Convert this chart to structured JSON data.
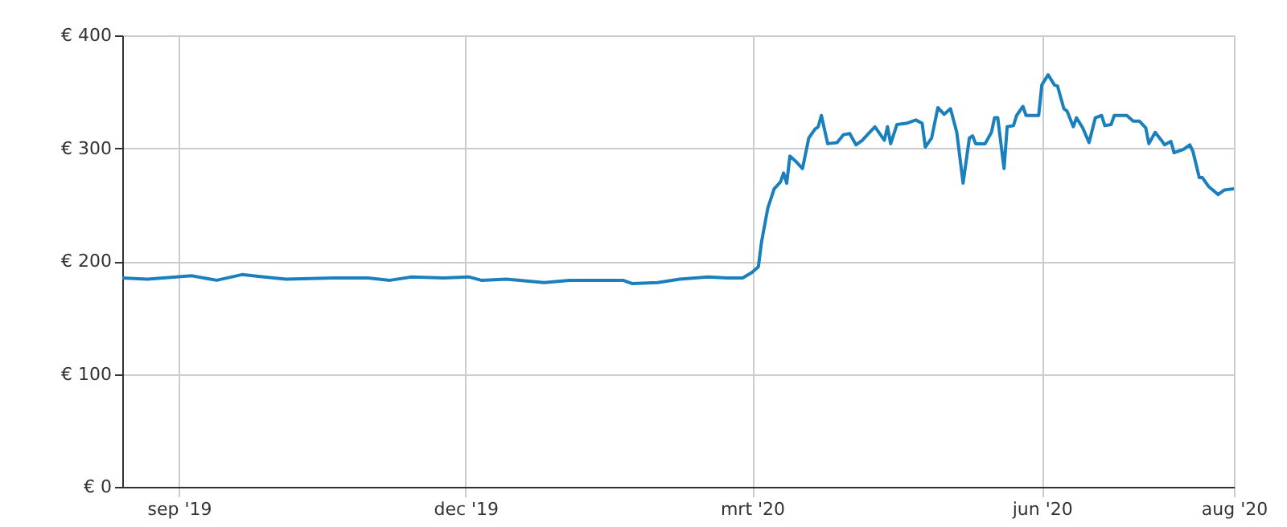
{
  "chart_data": {
    "type": "line",
    "color": "#1a80bd",
    "grid": true,
    "marker": "none",
    "line_style": "solid",
    "xlim": [
      "2019-08-14",
      "2020-08-01"
    ],
    "ylim": [
      0,
      400
    ],
    "xticks": [
      {
        "value": "2019-09-01",
        "label": "sep '19"
      },
      {
        "value": "2019-12-01",
        "label": "dec '19"
      },
      {
        "value": "2020-03-01",
        "label": "mrt '20"
      },
      {
        "value": "2020-06-01",
        "label": "jun '20"
      },
      {
        "value": "2020-08-01",
        "label": "aug '20"
      }
    ],
    "yticks": [
      {
        "value": 0,
        "label": "€ 0"
      },
      {
        "value": 100,
        "label": "€ 100"
      },
      {
        "value": 200,
        "label": "€ 200"
      },
      {
        "value": 300,
        "label": "€ 300"
      },
      {
        "value": 400,
        "label": "€ 400"
      }
    ],
    "x": [
      "2019-08-14",
      "2019-08-22",
      "2019-09-05",
      "2019-09-13",
      "2019-09-21",
      "2019-09-28",
      "2019-10-05",
      "2019-10-20",
      "2019-10-31",
      "2019-11-07",
      "2019-11-14",
      "2019-11-24",
      "2019-12-02",
      "2019-12-06",
      "2019-12-14",
      "2019-12-26",
      "2020-01-03",
      "2020-01-20",
      "2020-01-23",
      "2020-01-31",
      "2020-02-07",
      "2020-02-16",
      "2020-02-22",
      "2020-02-27",
      "2020-03-01",
      "2020-03-03",
      "2020-03-04",
      "2020-03-06",
      "2020-03-08",
      "2020-03-10",
      "2020-03-11",
      "2020-03-12",
      "2020-03-13",
      "2020-03-15",
      "2020-03-17",
      "2020-03-19",
      "2020-03-21",
      "2020-03-22",
      "2020-03-23",
      "2020-03-25",
      "2020-03-28",
      "2020-03-30",
      "2020-04-01",
      "2020-04-03",
      "2020-04-05",
      "2020-04-07",
      "2020-04-09",
      "2020-04-10",
      "2020-04-12",
      "2020-04-13",
      "2020-04-14",
      "2020-04-16",
      "2020-04-19",
      "2020-04-22",
      "2020-04-24",
      "2020-04-25",
      "2020-04-27",
      "2020-04-29",
      "2020-05-01",
      "2020-05-03",
      "2020-05-05",
      "2020-05-07",
      "2020-05-09",
      "2020-05-10",
      "2020-05-11",
      "2020-05-14",
      "2020-05-16",
      "2020-05-17",
      "2020-05-18",
      "2020-05-20",
      "2020-05-21",
      "2020-05-23",
      "2020-05-24",
      "2020-05-26",
      "2020-05-27",
      "2020-05-31",
      "2020-06-01",
      "2020-06-03",
      "2020-06-05",
      "2020-06-06",
      "2020-06-08",
      "2020-06-09",
      "2020-06-11",
      "2020-06-12",
      "2020-06-14",
      "2020-06-16",
      "2020-06-18",
      "2020-06-20",
      "2020-06-21",
      "2020-06-23",
      "2020-06-24",
      "2020-06-28",
      "2020-06-30",
      "2020-07-02",
      "2020-07-04",
      "2020-07-05",
      "2020-07-07",
      "2020-07-09",
      "2020-07-10",
      "2020-07-12",
      "2020-07-13",
      "2020-07-16",
      "2020-07-18",
      "2020-07-19",
      "2020-07-21",
      "2020-07-22",
      "2020-07-24",
      "2020-07-27",
      "2020-07-29",
      "2020-08-01"
    ],
    "values": [
      185,
      184,
      187,
      183,
      188,
      186,
      184,
      185,
      185,
      183,
      186,
      185,
      186,
      183,
      184,
      181,
      183,
      183,
      180,
      181,
      184,
      186,
      185,
      185,
      190,
      195,
      217,
      247,
      264,
      270,
      278,
      269,
      293,
      288,
      282,
      309,
      317,
      319,
      329,
      304,
      305,
      312,
      313,
      303,
      307,
      313,
      319,
      315,
      307,
      319,
      304,
      321,
      322,
      325,
      322,
      301,
      309,
      336,
      330,
      335,
      314,
      269,
      309,
      311,
      304,
      304,
      314,
      327,
      327,
      282,
      319,
      320,
      329,
      337,
      329,
      329,
      356,
      365,
      356,
      355,
      335,
      333,
      319,
      327,
      318,
      305,
      327,
      329,
      320,
      321,
      329,
      329,
      324,
      324,
      318,
      304,
      314,
      307,
      303,
      306,
      296,
      299,
      303,
      297,
      274,
      274,
      266,
      259,
      263,
      264
    ]
  }
}
